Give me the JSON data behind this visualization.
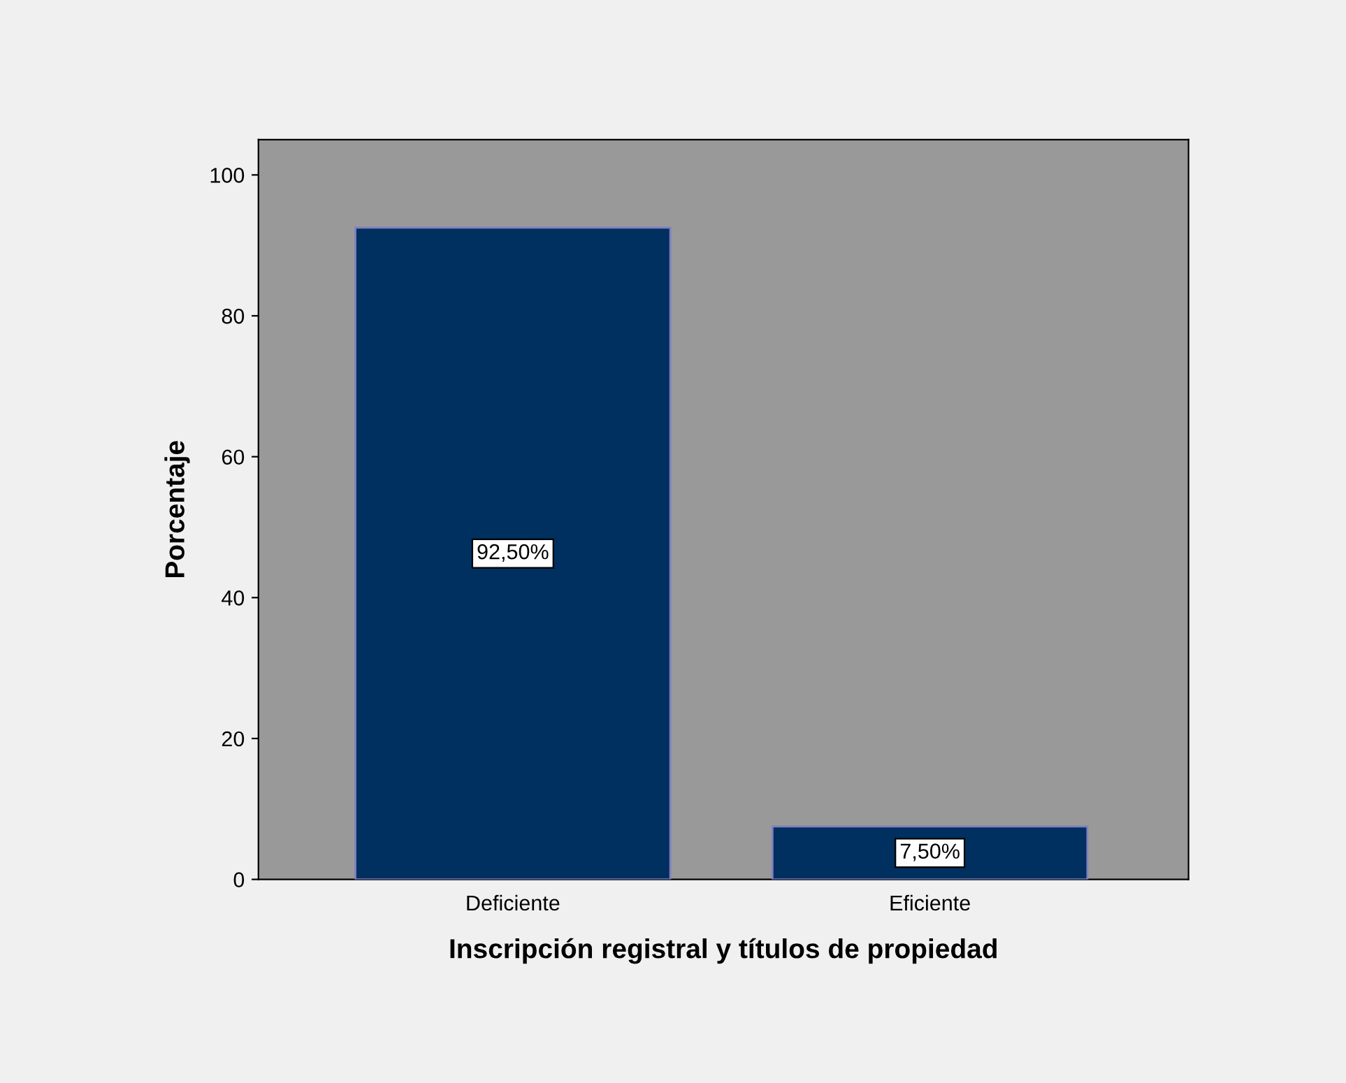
{
  "chart_data": {
    "type": "bar",
    "xlabel": "Inscripción registral y títulos de propiedad",
    "ylabel": "Porcentaje",
    "categories": [
      "Deficiente",
      "Eficiente"
    ],
    "values": [
      92.5,
      7.5
    ],
    "value_labels": [
      "92,50%",
      "7,50%"
    ],
    "color": "#00305f",
    "ylim": [
      0,
      105
    ],
    "yticks": [
      0,
      20,
      40,
      60,
      80,
      100
    ],
    "grid": false,
    "legend": false
  }
}
